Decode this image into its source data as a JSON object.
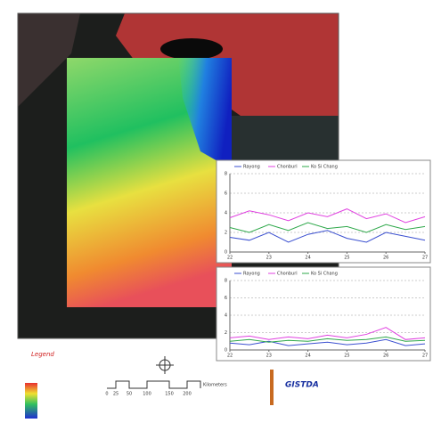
{
  "map": {
    "legend_title": "Legend",
    "scale_unit": "Kilometers",
    "scale_ticks": [
      "0",
      "25",
      "50",
      "100",
      "150",
      "200"
    ],
    "logo": "GISTDA"
  },
  "chart_data": [
    {
      "type": "line",
      "x": [
        22,
        22.5,
        23,
        23.5,
        24,
        24.5,
        25,
        25.5,
        26,
        26.5,
        27
      ],
      "xlim": [
        22,
        27
      ],
      "xticks": [
        22,
        23,
        24,
        25,
        26,
        27
      ],
      "ylim": [
        0,
        8
      ],
      "yticks": [
        0,
        2,
        4,
        6,
        8
      ],
      "grid": true,
      "series": [
        {
          "name": "Rayong",
          "color": "#3a4fd0",
          "values": [
            1.5,
            1.2,
            2.0,
            1.0,
            1.8,
            2.2,
            1.4,
            1.0,
            2.0,
            1.6,
            1.2
          ]
        },
        {
          "name": "Chonburi",
          "color": "#e040e0",
          "values": [
            3.5,
            4.2,
            3.8,
            3.2,
            4.0,
            3.6,
            4.4,
            3.4,
            3.9,
            3.0,
            3.6
          ]
        },
        {
          "name": "Ko Si Chang",
          "color": "#2ea84a",
          "values": [
            2.5,
            2.0,
            2.8,
            2.2,
            3.0,
            2.4,
            2.6,
            2.0,
            2.8,
            2.3,
            2.6
          ]
        }
      ]
    },
    {
      "type": "line",
      "x": [
        22,
        22.5,
        23,
        23.5,
        24,
        24.5,
        25,
        25.5,
        26,
        26.5,
        27
      ],
      "xlim": [
        22,
        27
      ],
      "xticks": [
        22,
        23,
        24,
        25,
        26,
        27
      ],
      "ylim": [
        0,
        8
      ],
      "yticks": [
        0,
        2,
        4,
        6,
        8
      ],
      "grid": true,
      "series": [
        {
          "name": "Rayong",
          "color": "#3a4fd0",
          "values": [
            0.8,
            0.6,
            1.0,
            0.5,
            0.7,
            0.9,
            0.6,
            0.8,
            1.2,
            0.5,
            0.7
          ]
        },
        {
          "name": "Chonburi",
          "color": "#e040e0",
          "values": [
            1.4,
            1.6,
            1.2,
            1.5,
            1.3,
            1.7,
            1.4,
            1.8,
            2.6,
            1.2,
            1.4
          ]
        },
        {
          "name": "Ko Si Chang",
          "color": "#2ea84a",
          "values": [
            1.0,
            1.2,
            0.9,
            1.1,
            1.0,
            1.3,
            1.1,
            1.2,
            1.5,
            1.0,
            1.1
          ]
        }
      ]
    }
  ]
}
